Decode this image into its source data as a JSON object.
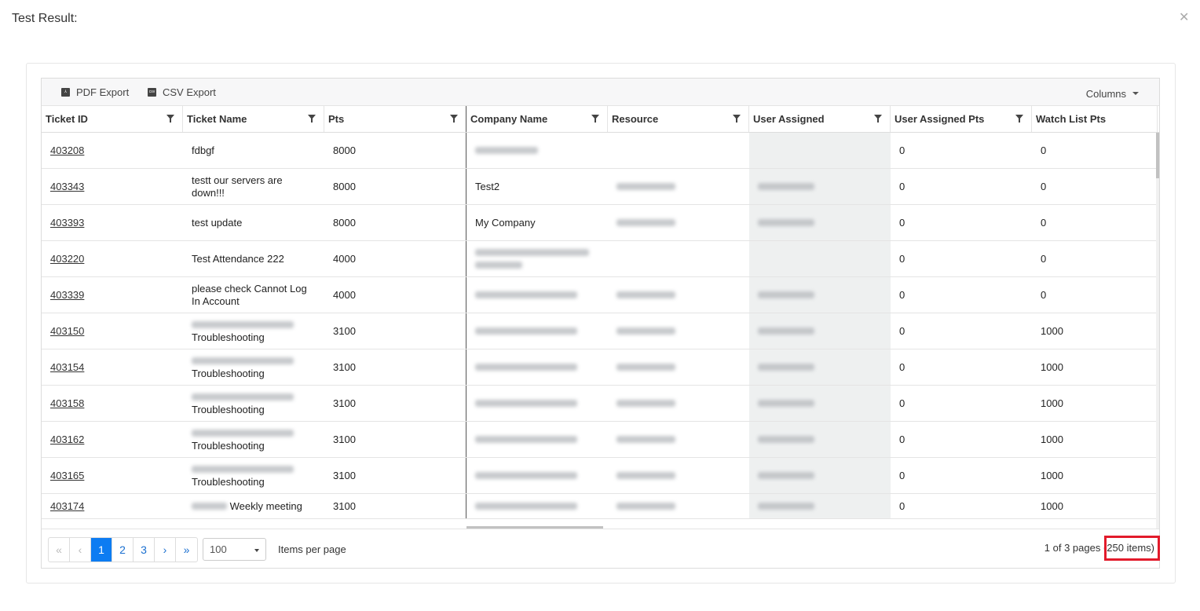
{
  "modal": {
    "title": "Test Result:",
    "close_icon": "close-icon"
  },
  "toolbar": {
    "pdf": "PDF Export",
    "csv": "CSV Export",
    "columns": "Columns"
  },
  "columns": [
    "Ticket ID",
    "Ticket Name",
    "Pts",
    "Company Name",
    "Resource",
    "User Assigned",
    "User Assigned Pts",
    "Watch List Pts"
  ],
  "rows": [
    {
      "id": "403208",
      "name": "fdbgf",
      "pts": "8000",
      "company": "",
      "ua_pts": "0",
      "watch": "0",
      "blur": [
        0,
        1,
        0,
        0
      ]
    },
    {
      "id": "403343",
      "name": "testt our servers are down!!!",
      "pts": "8000",
      "company": "Test2",
      "ua_pts": "0",
      "watch": "0",
      "blur": [
        0,
        0,
        1,
        1
      ]
    },
    {
      "id": "403393",
      "name": "test update",
      "pts": "8000",
      "company": "My Company",
      "ua_pts": "0",
      "watch": "0",
      "blur": [
        0,
        0,
        1,
        1
      ]
    },
    {
      "id": "403220",
      "name": "Test Attendance 222",
      "pts": "4000",
      "company": "",
      "ua_pts": "0",
      "watch": "0",
      "blur": [
        0,
        2,
        0,
        0
      ]
    },
    {
      "id": "403339",
      "name": "please check Cannot Log In Account",
      "pts": "4000",
      "company": "",
      "ua_pts": "0",
      "watch": "0",
      "blur": [
        0,
        1,
        1,
        1
      ]
    },
    {
      "id": "403150",
      "name": "Troubleshooting",
      "pts": "3100",
      "company": "",
      "ua_pts": "0",
      "watch": "1000",
      "blur": [
        1,
        1,
        1,
        1
      ]
    },
    {
      "id": "403154",
      "name": "Troubleshooting",
      "pts": "3100",
      "company": "",
      "ua_pts": "0",
      "watch": "1000",
      "blur": [
        1,
        1,
        1,
        1
      ]
    },
    {
      "id": "403158",
      "name": "Troubleshooting",
      "pts": "3100",
      "company": "",
      "ua_pts": "0",
      "watch": "1000",
      "blur": [
        1,
        1,
        1,
        1
      ]
    },
    {
      "id": "403162",
      "name": "Troubleshooting",
      "pts": "3100",
      "company": "",
      "ua_pts": "0",
      "watch": "1000",
      "blur": [
        1,
        1,
        1,
        1
      ]
    },
    {
      "id": "403165",
      "name": "Troubleshooting",
      "pts": "3100",
      "company": "",
      "ua_pts": "0",
      "watch": "1000",
      "blur": [
        1,
        1,
        1,
        1
      ]
    },
    {
      "id": "403174",
      "name": "Weekly meeting",
      "pts": "3100",
      "company": "",
      "ua_pts": "0",
      "watch": "1000",
      "blur": [
        2,
        1,
        1,
        1
      ]
    }
  ],
  "pager": {
    "first": "«",
    "prev": "‹",
    "pages": [
      "1",
      "2",
      "3"
    ],
    "current": "1",
    "next": "›",
    "last": "»",
    "page_size": "100",
    "items_per_page": "Items per page",
    "info": "1 of 3 pages",
    "items": "(250 items)"
  },
  "colors": {
    "accent": "#0d7cf2",
    "highlight": "#e21b2b"
  }
}
